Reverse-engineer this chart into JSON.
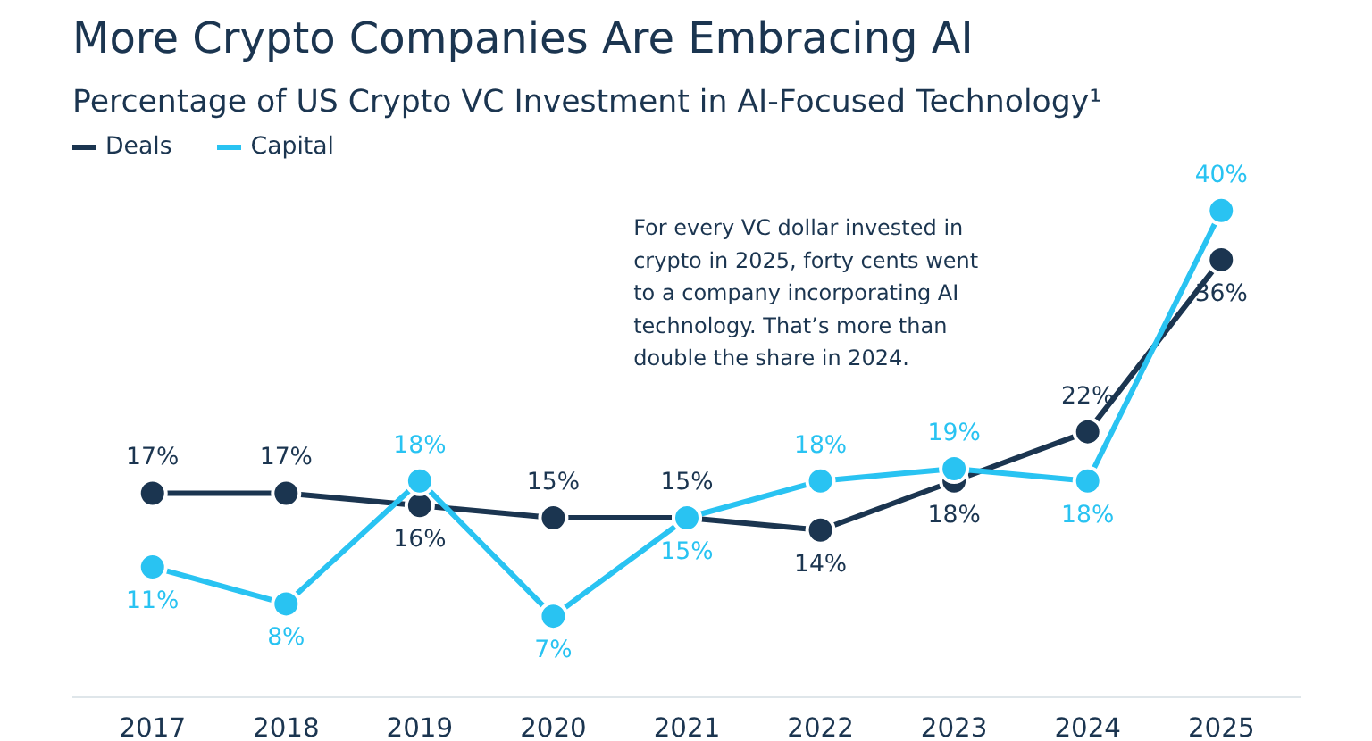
{
  "chart_data": {
    "type": "line",
    "title": "More Crypto Companies Are Embracing AI",
    "subtitle": "Percentage of US Crypto VC Investment in AI-Focused Technology¹",
    "categories": [
      "2017",
      "2018",
      "2019",
      "2020",
      "2021",
      "2022",
      "2023",
      "2024",
      "2025"
    ],
    "series": [
      {
        "name": "Deals",
        "color": "#1b3550",
        "values": [
          17,
          17,
          16,
          15,
          15,
          14,
          18,
          22,
          36
        ],
        "value_labels": [
          "17%",
          "17%",
          "16%",
          "15%",
          "15%",
          "14%",
          "18%",
          "22%",
          "36%"
        ]
      },
      {
        "name": "Capital",
        "color": "#29c3f2",
        "values": [
          11,
          8,
          18,
          7,
          15,
          18,
          19,
          18,
          40
        ],
        "value_labels": [
          "11%",
          "8%",
          "18%",
          "7%",
          "15%",
          "18%",
          "19%",
          "18%",
          "40%"
        ]
      }
    ],
    "annotations": [
      "For every VC dollar invested in crypto in 2025, forty cents went to a company incorporating AI technology. That’s more than double the share in 2024."
    ],
    "legend": "top left",
    "marker": "circle",
    "grid": false
  }
}
